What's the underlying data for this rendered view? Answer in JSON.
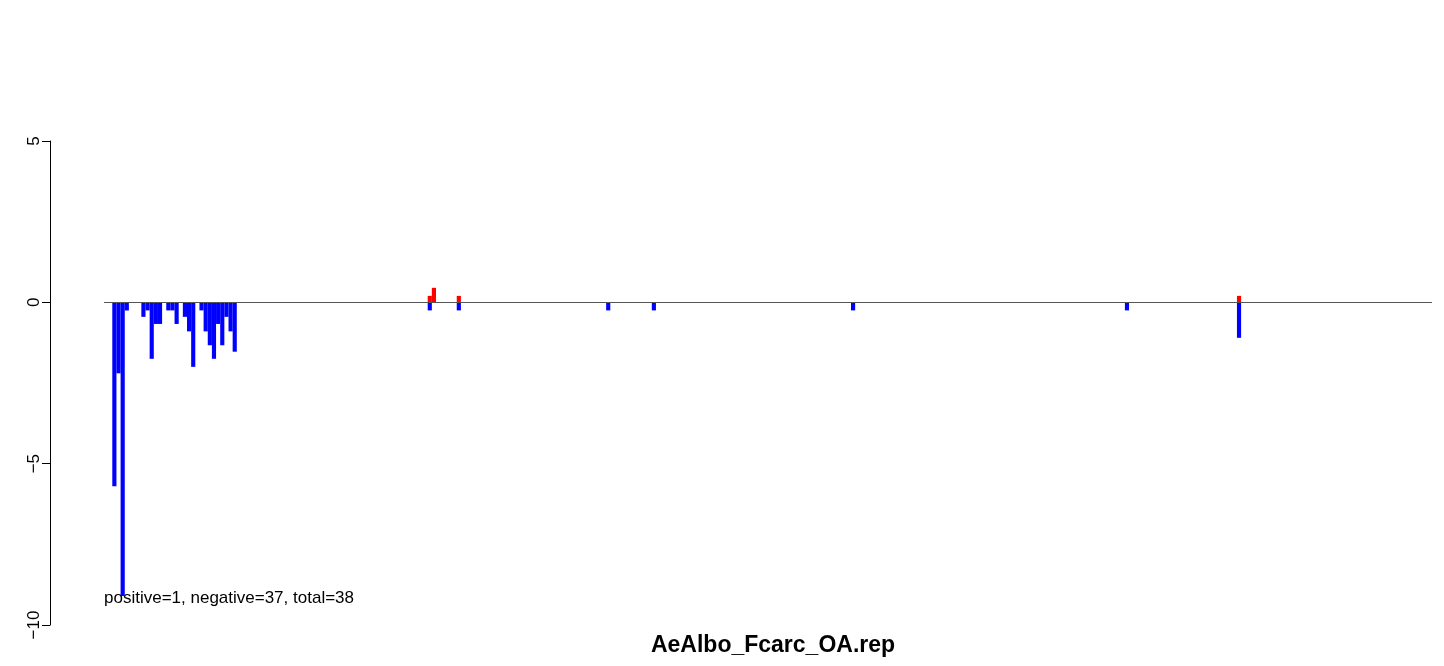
{
  "chart_data": {
    "type": "bar",
    "title": "AeAlbo_Fcarc_OA.rep",
    "annotations": [
      "positive=1, negative=37, total=38"
    ],
    "categories": [
      null,
      null,
      null,
      null,
      null,
      null,
      null,
      null,
      null,
      null,
      null,
      null,
      null,
      null,
      null,
      null,
      null,
      null,
      null,
      null,
      null,
      null,
      null,
      null,
      null,
      null,
      null,
      null,
      null,
      null,
      null,
      null,
      null,
      null,
      null,
      null,
      null,
      null,
      null,
      null,
      null,
      null,
      null,
      null,
      null,
      null,
      null,
      null,
      null,
      null,
      null,
      null,
      null,
      null,
      null,
      null,
      null,
      null,
      null,
      null,
      null,
      null,
      null,
      null,
      null,
      null,
      null,
      null,
      null,
      null,
      null,
      null,
      null,
      null,
      null,
      null,
      null,
      null,
      null,
      null,
      null,
      null,
      null,
      null,
      null,
      null,
      null,
      null,
      null,
      null,
      null,
      null,
      null,
      null,
      null,
      null,
      null,
      null,
      null,
      null,
      null,
      null,
      null,
      null,
      null,
      null,
      null,
      null,
      null,
      null,
      null,
      null,
      null,
      null,
      null,
      null,
      null,
      null,
      null,
      null,
      null,
      null,
      null,
      null,
      null,
      null,
      null,
      null,
      null,
      null,
      null,
      null,
      null,
      null,
      null,
      null,
      null,
      null,
      null,
      null,
      null,
      null,
      null,
      null,
      null,
      null,
      null,
      null,
      null,
      null,
      null,
      null,
      null,
      null,
      null,
      null,
      null,
      null,
      null,
      null,
      null,
      null,
      null,
      null,
      null,
      null,
      null,
      null,
      null,
      null,
      null,
      null,
      null,
      null,
      null,
      null,
      null,
      null,
      null,
      null,
      null,
      null,
      null,
      null,
      null,
      null,
      null,
      null,
      null,
      null,
      null,
      null,
      null,
      null,
      null,
      null,
      null,
      null,
      null,
      null,
      null,
      null,
      null,
      null,
      null,
      null,
      null,
      null,
      null,
      null,
      null,
      null,
      null,
      null,
      null,
      null,
      null,
      null,
      null,
      null,
      null,
      null,
      null,
      null,
      null,
      null,
      null,
      null,
      null,
      null,
      null,
      null,
      null,
      null,
      null,
      null,
      null,
      null,
      null,
      null,
      null,
      null,
      null,
      null,
      null,
      null,
      null,
      null,
      null,
      null,
      null,
      null,
      null,
      null,
      null,
      null,
      null,
      null,
      null,
      null,
      null,
      null,
      null,
      null,
      null,
      null,
      null,
      null,
      null,
      null,
      null,
      null,
      null,
      null,
      null,
      null,
      null,
      null,
      null,
      null,
      null,
      null,
      null,
      null,
      null,
      null,
      null,
      null,
      null,
      null,
      null,
      null,
      null,
      null,
      null,
      null,
      null,
      null,
      null,
      null,
      null,
      null,
      null,
      null,
      null,
      null,
      null,
      null,
      null,
      null,
      null,
      null,
      null,
      null,
      null,
      null,
      null,
      null,
      null,
      null
    ],
    "series": [
      {
        "color": "#ff0000",
        "values": [
          null,
          null,
          null,
          null,
          null,
          null,
          null,
          null,
          null,
          null,
          null,
          null,
          null,
          null,
          null,
          null,
          null,
          null,
          null,
          null,
          null,
          null,
          null,
          null,
          null,
          null,
          null,
          null,
          null,
          null,
          null,
          null,
          null,
          null,
          null,
          null,
          null,
          null,
          null,
          null,
          null,
          null,
          null,
          null,
          null,
          null,
          null,
          null,
          null,
          null,
          null,
          null,
          null,
          null,
          null,
          null,
          null,
          null,
          null,
          null,
          null,
          null,
          null,
          null,
          null,
          null,
          null,
          null,
          null,
          null,
          null,
          null,
          null,
          null,
          null,
          null,
          null,
          null,
          0.2,
          0.45,
          null,
          null,
          null,
          null,
          null,
          0.2,
          null,
          null,
          null,
          null,
          null,
          null,
          null,
          null,
          null,
          null,
          null,
          null,
          null,
          null,
          null,
          null,
          null,
          null,
          null,
          null,
          null,
          null,
          null,
          null,
          null,
          null,
          null,
          null,
          null,
          null,
          null,
          null,
          null,
          null,
          null,
          null,
          null,
          null,
          null,
          null,
          null,
          null,
          null,
          null,
          null,
          null,
          null,
          null,
          null,
          null,
          null,
          null,
          null,
          null,
          null,
          null,
          null,
          null,
          null,
          null,
          null,
          null,
          null,
          null,
          null,
          null,
          null,
          null,
          null,
          null,
          null,
          null,
          null,
          null,
          null,
          null,
          null,
          null,
          null,
          null,
          null,
          null,
          null,
          null,
          null,
          null,
          null,
          null,
          null,
          null,
          null,
          null,
          null,
          null,
          null,
          null,
          null,
          null,
          null,
          null,
          null,
          null,
          null,
          null,
          null,
          null,
          null,
          null,
          null,
          null,
          null,
          null,
          null,
          null,
          null,
          null,
          null,
          null,
          null,
          null,
          null,
          null,
          null,
          null,
          null,
          null,
          null,
          null,
          null,
          null,
          null,
          null,
          null,
          null,
          null,
          null,
          null,
          null,
          null,
          null,
          null,
          null,
          null,
          null,
          null,
          null,
          null,
          null,
          null,
          null,
          null,
          null,
          null,
          null,
          null,
          null,
          null,
          null,
          null,
          null,
          null,
          null,
          null,
          null,
          null,
          null,
          null,
          null,
          null,
          null,
          null,
          null,
          null,
          null,
          null,
          null,
          null,
          null,
          null,
          null,
          null,
          null,
          null,
          null,
          null,
          null,
          null,
          0.2,
          null,
          null,
          null,
          null,
          null,
          null,
          null,
          null,
          null,
          null,
          null,
          null,
          null,
          null,
          null,
          null,
          null,
          null,
          null,
          null,
          null,
          null,
          null,
          null,
          null,
          null,
          null,
          null,
          null,
          null,
          null,
          null,
          null,
          null,
          null,
          null,
          null,
          null,
          null,
          null,
          null,
          null,
          null,
          null,
          null,
          null
        ]
      },
      {
        "color": "#0000ff",
        "values": [
          null,
          null,
          -5.7,
          -2.2,
          -9.1,
          -0.25,
          null,
          null,
          null,
          -0.45,
          -0.25,
          -1.75,
          -0.67,
          -0.67,
          null,
          -0.25,
          -0.25,
          -0.67,
          null,
          -0.45,
          -0.9,
          -2.0,
          null,
          -0.25,
          -0.9,
          -1.33,
          -1.75,
          -0.67,
          -1.33,
          -0.45,
          -0.9,
          -1.53,
          null,
          null,
          null,
          null,
          null,
          null,
          null,
          null,
          null,
          null,
          null,
          null,
          null,
          null,
          null,
          null,
          null,
          null,
          null,
          null,
          null,
          null,
          null,
          null,
          null,
          null,
          null,
          null,
          null,
          null,
          null,
          null,
          null,
          null,
          null,
          null,
          null,
          null,
          null,
          null,
          null,
          null,
          null,
          null,
          null,
          null,
          -0.25,
          null,
          null,
          null,
          null,
          null,
          null,
          -0.25,
          null,
          null,
          null,
          null,
          null,
          null,
          null,
          null,
          null,
          null,
          null,
          null,
          null,
          null,
          null,
          null,
          null,
          null,
          null,
          null,
          null,
          null,
          null,
          null,
          null,
          null,
          null,
          null,
          null,
          null,
          null,
          null,
          null,
          null,
          null,
          -0.25,
          null,
          null,
          null,
          null,
          null,
          null,
          null,
          null,
          null,
          null,
          -0.25,
          null,
          null,
          null,
          null,
          null,
          null,
          null,
          null,
          null,
          null,
          null,
          null,
          null,
          null,
          null,
          null,
          null,
          null,
          null,
          null,
          null,
          null,
          null,
          null,
          null,
          null,
          null,
          null,
          null,
          null,
          null,
          null,
          null,
          null,
          null,
          null,
          null,
          null,
          null,
          null,
          null,
          null,
          null,
          null,
          null,
          null,
          null,
          -0.25,
          null,
          null,
          null,
          null,
          null,
          null,
          null,
          null,
          null,
          null,
          null,
          null,
          null,
          null,
          null,
          null,
          null,
          null,
          null,
          null,
          null,
          null,
          null,
          null,
          null,
          null,
          null,
          null,
          null,
          null,
          null,
          null,
          null,
          null,
          null,
          null,
          null,
          null,
          null,
          null,
          null,
          null,
          null,
          null,
          null,
          null,
          null,
          null,
          null,
          null,
          null,
          null,
          null,
          null,
          null,
          null,
          null,
          null,
          null,
          null,
          null,
          null,
          null,
          null,
          null,
          -0.25,
          null,
          null,
          null,
          null,
          null,
          null,
          null,
          null,
          null,
          null,
          null,
          null,
          null,
          null,
          null,
          null,
          null,
          null,
          null,
          null,
          null,
          null,
          null,
          null,
          null,
          null,
          -1.1,
          null,
          null,
          null,
          null,
          null,
          null,
          null,
          null,
          null,
          null,
          null,
          null,
          null,
          null,
          null,
          null,
          null,
          null,
          null,
          null,
          null,
          null,
          null,
          null,
          null,
          null,
          null,
          null,
          null,
          null,
          null,
          null,
          null,
          null,
          null,
          null,
          null,
          null,
          null,
          null,
          null,
          null,
          null,
          null,
          null,
          null
        ]
      }
    ],
    "ylim": [
      -10,
      5
    ],
    "yticks": [
      -10,
      -5,
      0,
      5
    ],
    "ref_lines": [
      {
        "axis": "y",
        "value": 0,
        "color": "#555555",
        "line_style": "solid"
      }
    ]
  }
}
